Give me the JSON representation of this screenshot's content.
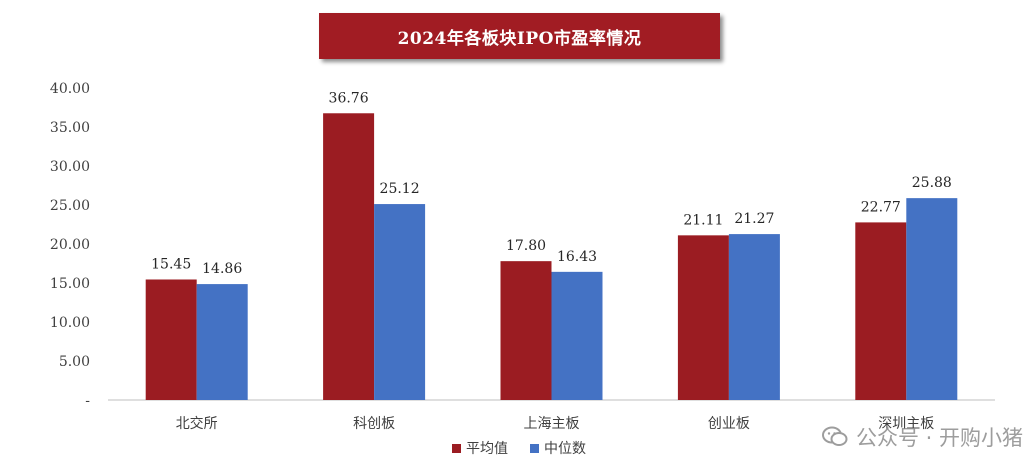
{
  "chart_data": {
    "type": "bar",
    "title": "2024年各板块IPO市盈率情况",
    "categories": [
      "北交所",
      "科创板",
      "上海主板",
      "创业板",
      "深圳主板"
    ],
    "series": [
      {
        "name": "平均值",
        "color": "#9b1c22",
        "values": [
          15.45,
          36.76,
          17.8,
          21.11,
          22.77
        ]
      },
      {
        "name": "中位数",
        "color": "#4472c4",
        "values": [
          14.86,
          25.12,
          16.43,
          21.27,
          25.88
        ]
      }
    ],
    "y_ticks": [
      "-",
      "5.00",
      "10.00",
      "15.00",
      "20.00",
      "25.00",
      "30.00",
      "35.00",
      "40.00"
    ],
    "ylim": [
      0,
      40
    ],
    "grid": false,
    "legend_position": "bottom",
    "value_labels": [
      [
        "15.45",
        "36.76",
        "17.80",
        "21.11",
        "22.77"
      ],
      [
        "14.86",
        "25.12",
        "16.43",
        "21.27",
        "25.88"
      ]
    ]
  },
  "watermark": {
    "icon": "wechat-icon",
    "text": "公众号 · 开购小猪"
  }
}
